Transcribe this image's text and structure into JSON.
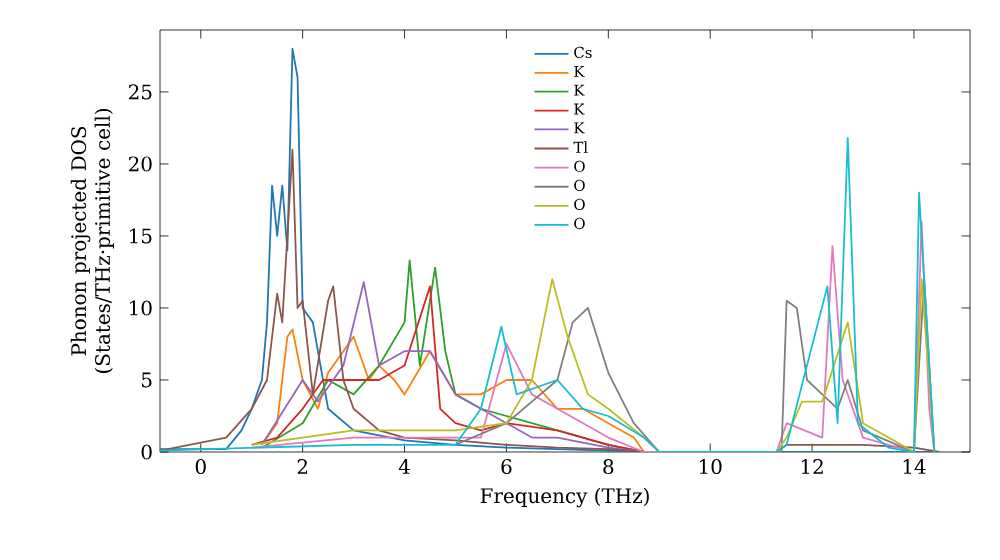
{
  "chart_data": {
    "type": "line",
    "xlabel": "Frequency (THz)",
    "ylabel": "Phonon projected DOS (States/THz·primitive cell)",
    "xlim": [
      -0.8,
      15.1
    ],
    "ylim": [
      0,
      29.3
    ],
    "xticks": [
      0,
      2,
      4,
      6,
      8,
      10,
      12,
      14
    ],
    "yticks": [
      0,
      5,
      10,
      15,
      20,
      25
    ],
    "legend": "top",
    "line_style": "solid",
    "series": [
      {
        "name": "Cs",
        "color": "#1f77b4",
        "x": [
          -0.8,
          0.5,
          0.8,
          1.0,
          1.2,
          1.3,
          1.4,
          1.5,
          1.6,
          1.7,
          1.8,
          1.9,
          2.0,
          2.2,
          2.5,
          3.0,
          4.0,
          5.0,
          6.0,
          7.0,
          8.0,
          8.7,
          14.0,
          14.5
        ],
        "values": [
          0.2,
          0.2,
          1.5,
          3,
          5,
          9,
          18.5,
          15,
          18.5,
          14,
          28,
          26,
          10,
          9,
          3,
          1.5,
          0.8,
          0.5,
          0.3,
          0.2,
          0.1,
          0,
          0,
          0
        ]
      },
      {
        "name": "K",
        "color": "#ff7f0e",
        "x": [
          1.2,
          1.5,
          1.7,
          1.8,
          2.0,
          2.3,
          2.5,
          3.0,
          3.3,
          3.5,
          3.8,
          4.0,
          4.5,
          5.0,
          5.5,
          6.0,
          6.5,
          7.0,
          7.5,
          8.0,
          8.5,
          8.7
        ],
        "values": [
          0.5,
          2,
          8,
          8.5,
          5,
          3,
          5.5,
          8,
          5,
          6,
          5,
          4,
          7,
          4,
          4,
          5,
          5,
          3,
          3,
          2,
          1,
          0
        ]
      },
      {
        "name": "K",
        "color": "#2ca02c",
        "x": [
          1.2,
          2.0,
          2.5,
          3.0,
          3.5,
          4.0,
          4.1,
          4.3,
          4.6,
          4.8,
          5.0,
          5.5,
          6.0,
          7.0,
          8.0,
          8.7
        ],
        "values": [
          0.3,
          2,
          5,
          4,
          6,
          9,
          13.3,
          6,
          12.8,
          7,
          4,
          3,
          2.5,
          1.5,
          0.5,
          0
        ]
      },
      {
        "name": "K",
        "color": "#d62728",
        "x": [
          1.0,
          1.5,
          2.0,
          2.4,
          3.0,
          3.5,
          4.0,
          4.5,
          4.7,
          5.0,
          5.5,
          6.0,
          7.0,
          8.0,
          8.7
        ],
        "values": [
          0.5,
          1,
          3,
          5,
          5,
          5,
          6,
          11.5,
          3,
          2,
          1.5,
          2,
          1.5,
          0.5,
          0
        ]
      },
      {
        "name": "K",
        "color": "#9467bd",
        "x": [
          1.2,
          2.0,
          2.3,
          2.8,
          3.2,
          3.5,
          4.0,
          4.5,
          5.0,
          5.5,
          6.0,
          6.5,
          7.0,
          8.0,
          8.7
        ],
        "values": [
          0.5,
          5,
          3.5,
          6,
          11.8,
          6,
          7,
          7,
          4,
          3,
          2,
          1,
          1,
          0.3,
          0
        ]
      },
      {
        "name": "Tl",
        "color": "#8c564b",
        "x": [
          -0.8,
          0.5,
          1.0,
          1.3,
          1.5,
          1.6,
          1.8,
          1.9,
          2.0,
          2.2,
          2.5,
          2.6,
          2.8,
          3.0,
          3.5,
          4.0,
          5.0,
          6.0,
          7.0,
          8.0,
          8.7,
          11.3,
          11.5,
          13.0,
          14.0,
          14.5
        ],
        "values": [
          0.1,
          1,
          3,
          5,
          11,
          9,
          21,
          10,
          10.5,
          4,
          10.5,
          11.5,
          5,
          3,
          1.5,
          1,
          0.8,
          0.5,
          0.3,
          0.2,
          0,
          0,
          0.5,
          0.5,
          0.3,
          0
        ]
      },
      {
        "name": "O",
        "color": "#e377c2",
        "x": [
          1.0,
          3.0,
          5.5,
          6.0,
          6.5,
          7.0,
          8.0,
          8.7,
          11.3,
          11.5,
          12.2,
          12.4,
          12.6,
          13.0,
          14.0,
          14.15,
          14.3,
          14.4
        ],
        "values": [
          0.3,
          1,
          1,
          7.5,
          4,
          3,
          1,
          0,
          0,
          2,
          1,
          14.3,
          5,
          1,
          0,
          16,
          3,
          0
        ]
      },
      {
        "name": "O",
        "color": "#7f7f7f",
        "x": [
          5.0,
          6.0,
          7.0,
          7.3,
          7.6,
          8.0,
          8.5,
          9.0,
          11.4,
          11.5,
          11.7,
          11.9,
          12.2,
          12.5,
          12.7,
          13.0,
          14.0,
          14.2,
          14.4
        ],
        "values": [
          0.5,
          2,
          5,
          9,
          10,
          5.5,
          2,
          0,
          0,
          10.5,
          10,
          5,
          4,
          3,
          5,
          1.5,
          0,
          12,
          0
        ]
      },
      {
        "name": "O",
        "color": "#bcbd22",
        "x": [
          1.0,
          3.0,
          5.0,
          6.0,
          6.5,
          6.9,
          7.2,
          7.6,
          8.0,
          8.7,
          9.0,
          11.3,
          11.5,
          11.8,
          12.2,
          12.7,
          13.0,
          13.5,
          14.0,
          14.15,
          14.4
        ],
        "values": [
          0.5,
          1.5,
          1.5,
          2,
          5,
          12,
          8,
          4,
          3,
          1,
          0,
          0,
          1,
          3.5,
          3.5,
          9,
          2,
          1,
          0,
          12,
          0
        ]
      },
      {
        "name": "O",
        "color": "#17becf",
        "x": [
          -0.8,
          3.0,
          5.0,
          5.5,
          5.9,
          6.2,
          7.0,
          7.5,
          8.0,
          8.7,
          9.0,
          11.3,
          11.5,
          12.3,
          12.5,
          12.7,
          12.9,
          13.5,
          14.0,
          14.1,
          14.4
        ],
        "values": [
          0.1,
          0.5,
          0.5,
          3,
          8.7,
          4,
          5,
          3,
          2.5,
          1,
          0,
          0,
          0.5,
          11.5,
          2,
          21.8,
          2,
          0.3,
          0,
          18,
          0
        ]
      }
    ]
  }
}
